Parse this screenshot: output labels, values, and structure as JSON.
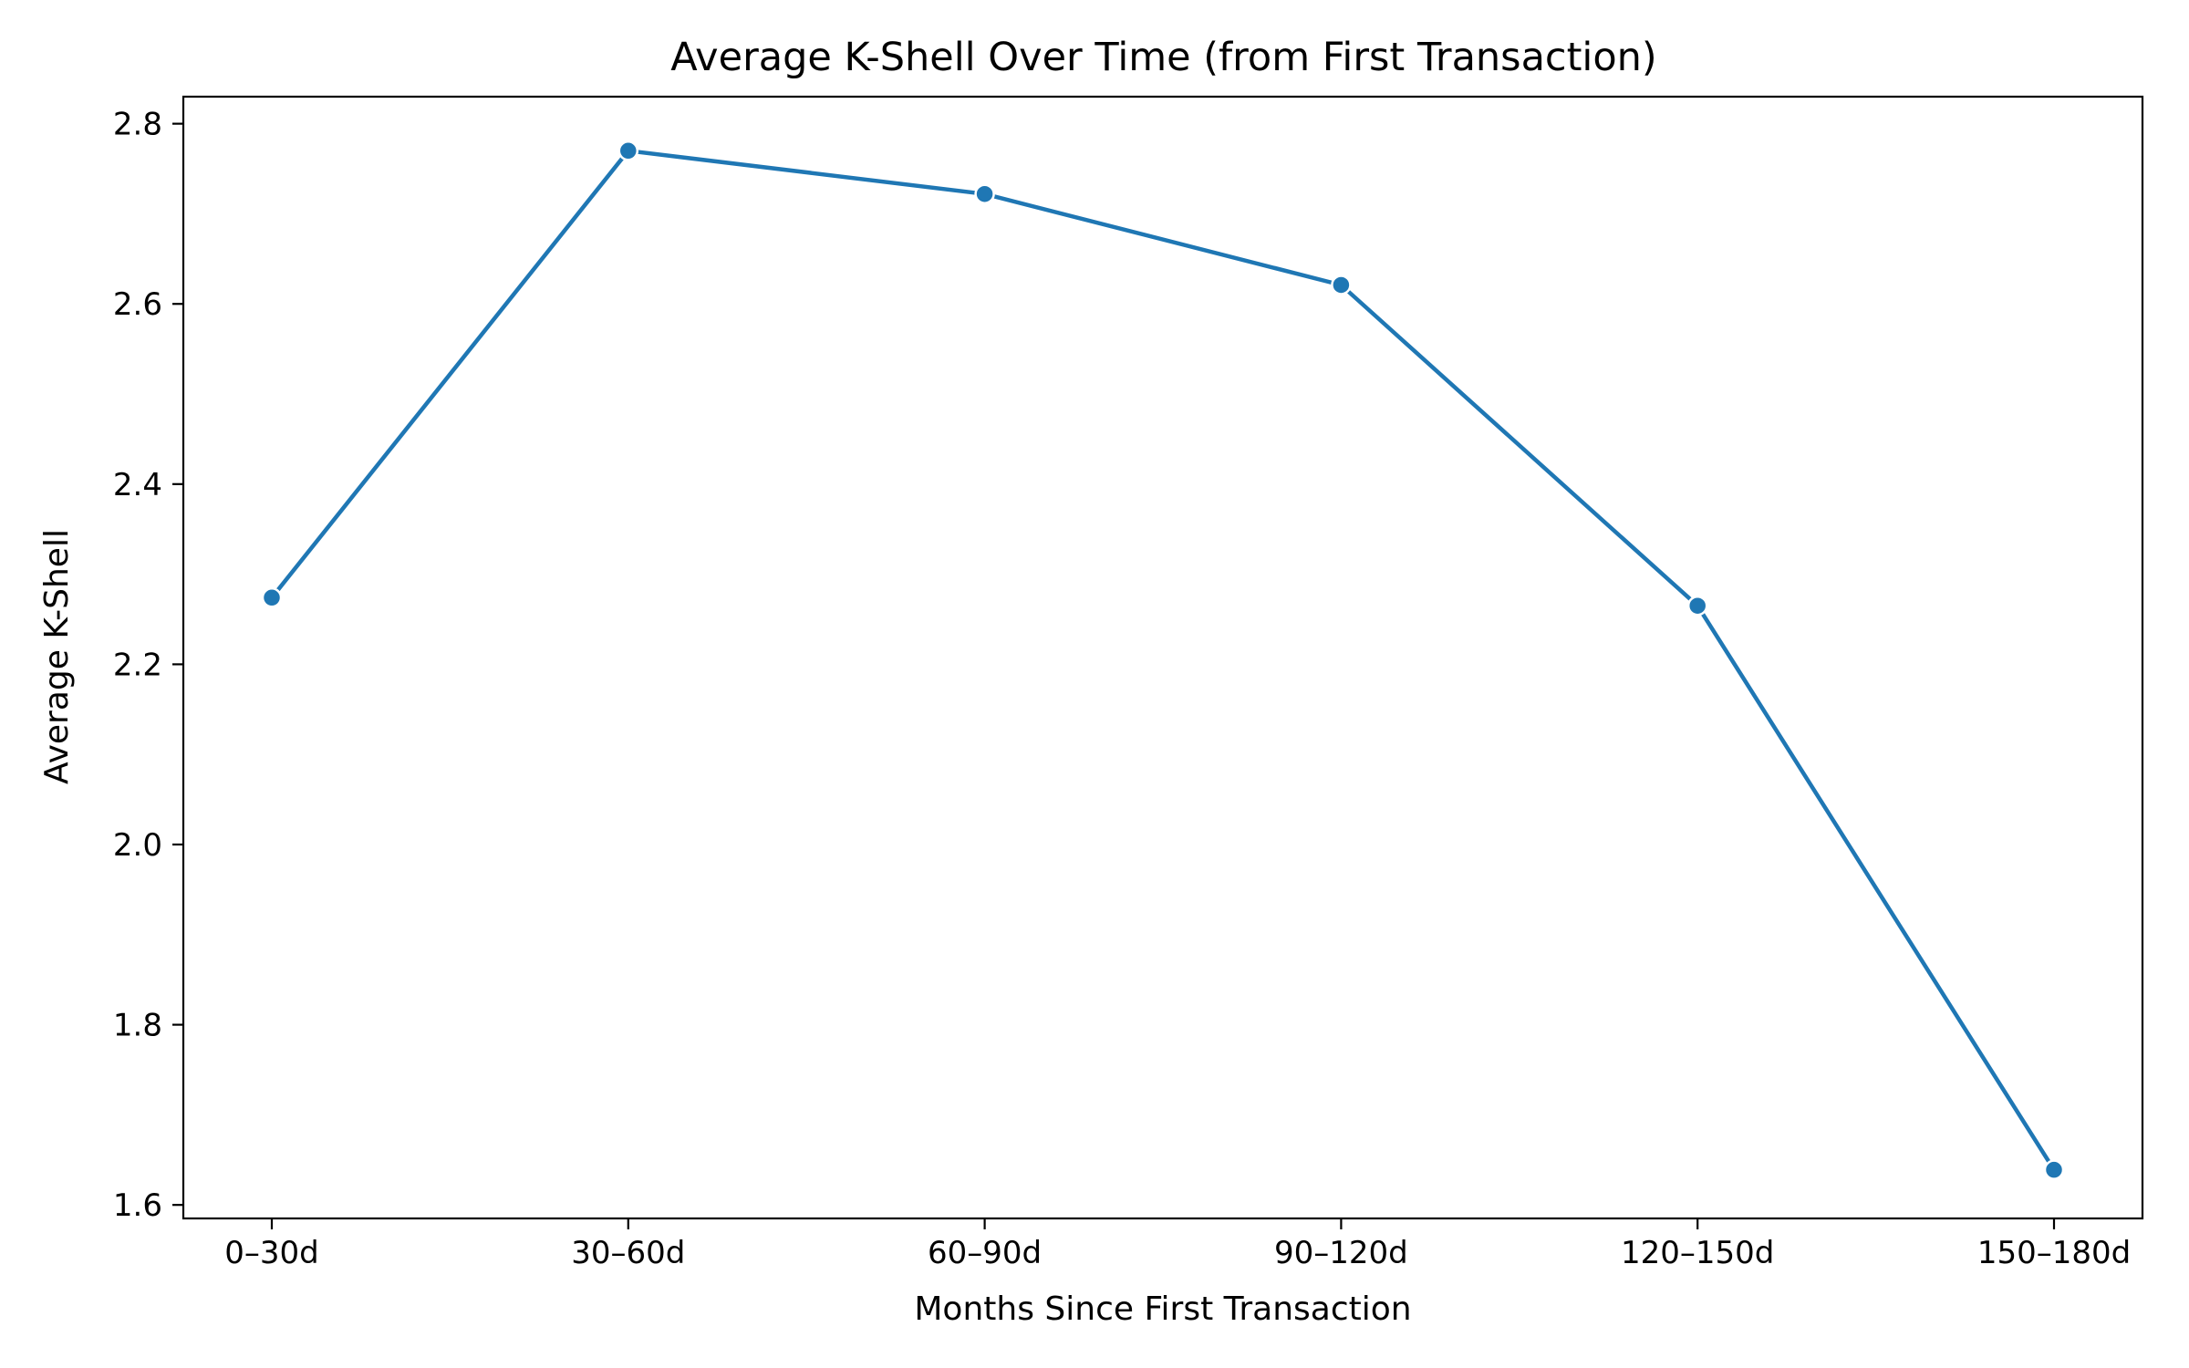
{
  "chart_data": {
    "type": "line",
    "title": "Average K-Shell Over Time (from First Transaction)",
    "xlabel": "Months Since First Transaction",
    "ylabel": "Average K-Shell",
    "categories": [
      "0–30d",
      "30–60d",
      "60–90d",
      "90–120d",
      "120–150d",
      "150–180d"
    ],
    "series": [
      {
        "values": [
          2.274,
          2.77,
          2.722,
          2.621,
          2.265,
          1.639
        ],
        "color": "#1f77b4",
        "marker": "circle"
      }
    ],
    "ylim": [
      1.585,
      2.83
    ],
    "yticks": [
      "1.6",
      "1.8",
      "2.0",
      "2.2",
      "2.4",
      "2.6",
      "2.8"
    ],
    "grid": false,
    "legend": false
  }
}
